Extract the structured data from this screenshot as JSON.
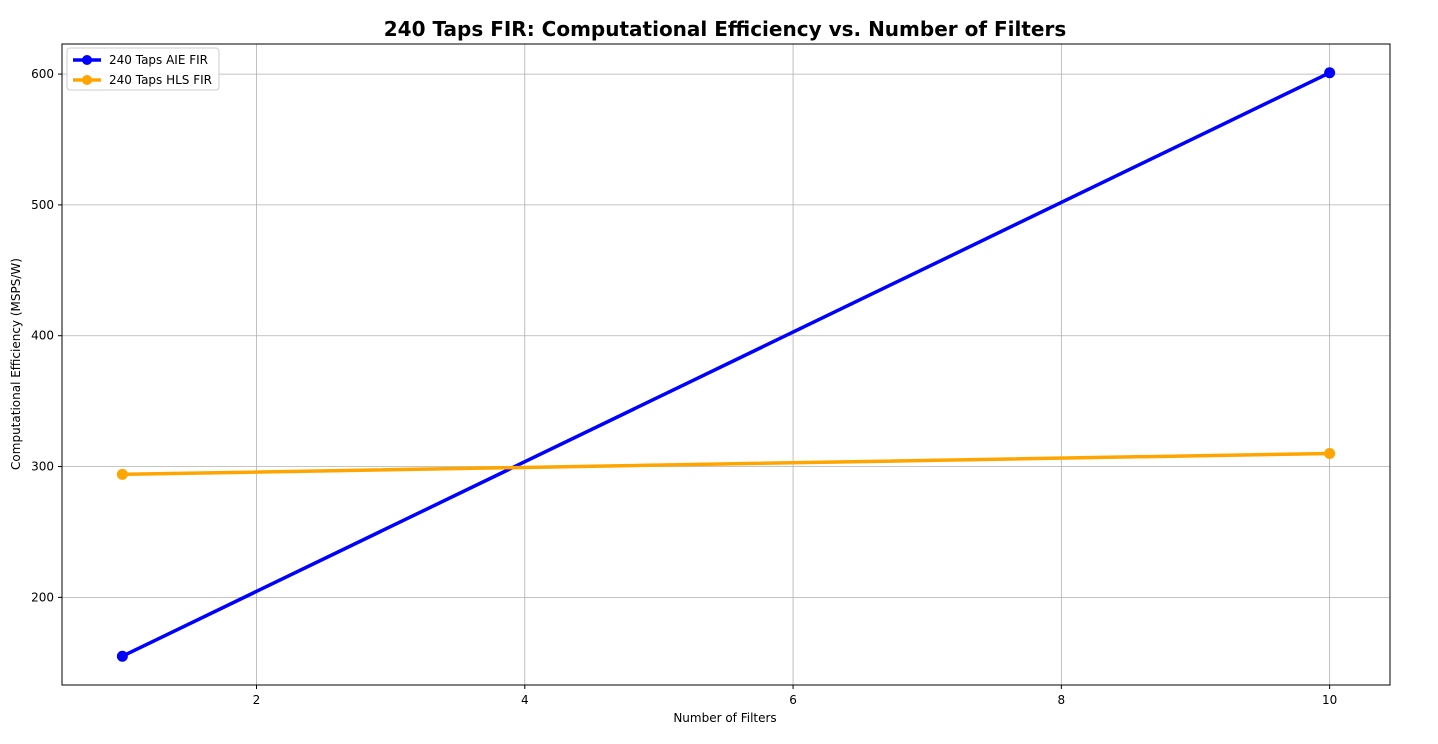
{
  "chart_data": {
    "type": "line",
    "title": "240 Taps FIR: Computational Efficiency vs. Number of Filters",
    "xlabel": "Number of Filters",
    "ylabel": "Computational Efficiency (MSPS/W)",
    "x": [
      1,
      10
    ],
    "xlim": [
      0.55,
      10.45
    ],
    "ylim": [
      133,
      623
    ],
    "xticks": [
      2,
      4,
      6,
      8,
      10
    ],
    "yticks": [
      200,
      300,
      400,
      500,
      600
    ],
    "xtick_labels": [
      "2",
      "4",
      "6",
      "8",
      "10"
    ],
    "ytick_labels": [
      "200",
      "300",
      "400",
      "500",
      "600"
    ],
    "grid": true,
    "legend_position": "top-left",
    "series": [
      {
        "name": "240 Taps AIE FIR",
        "color": "#0000ff",
        "values": [
          155,
          601
        ]
      },
      {
        "name": "240 Taps HLS FIR",
        "color": "#ffa500",
        "values": [
          294,
          310
        ]
      }
    ]
  }
}
